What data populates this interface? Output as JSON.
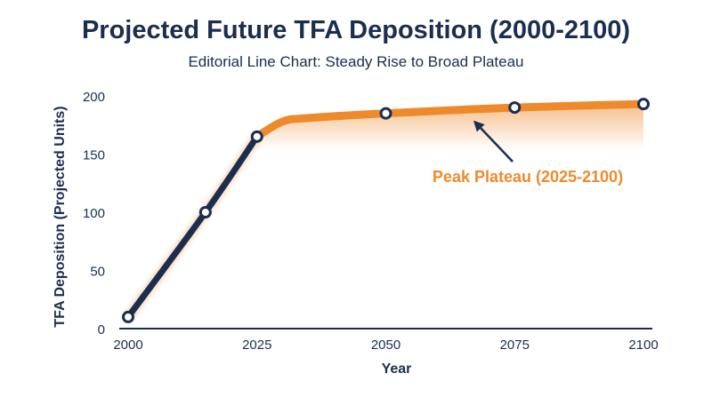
{
  "chart_data": {
    "type": "line",
    "title": "Projected Future TFA Deposition (2000-2100)",
    "subtitle": "Editorial Line Chart: Steady Rise to Broad Plateau",
    "xlabel": "Year",
    "ylabel": "TFA Deposition (Projected Units)",
    "xlim": [
      2000,
      2100
    ],
    "ylim": [
      0,
      200
    ],
    "x_ticks": [
      2000,
      2025,
      2050,
      2075,
      2100
    ],
    "y_ticks": [
      0,
      50,
      100,
      150,
      200
    ],
    "grid": false,
    "x": [
      2000,
      2015,
      2025,
      2050,
      2075,
      2100
    ],
    "values": [
      10,
      100,
      165,
      185,
      190,
      193
    ],
    "rise_segment": {
      "x": [
        2000,
        2015,
        2025
      ],
      "values": [
        10,
        100,
        165
      ]
    },
    "plateau_segment": {
      "x": [
        2025,
        2030,
        2035,
        2050,
        2075,
        2100
      ],
      "values": [
        165,
        178,
        181,
        185,
        190,
        193
      ]
    },
    "annotation": {
      "text": "Peak Plateau (2025-2100)",
      "arrow_to": [
        2067,
        182
      ]
    },
    "colors": {
      "rise": "#1b2e4f",
      "plateau": "#ee8a2c",
      "marker_fill": "#ffffff",
      "text": "#1b2e4f"
    }
  }
}
